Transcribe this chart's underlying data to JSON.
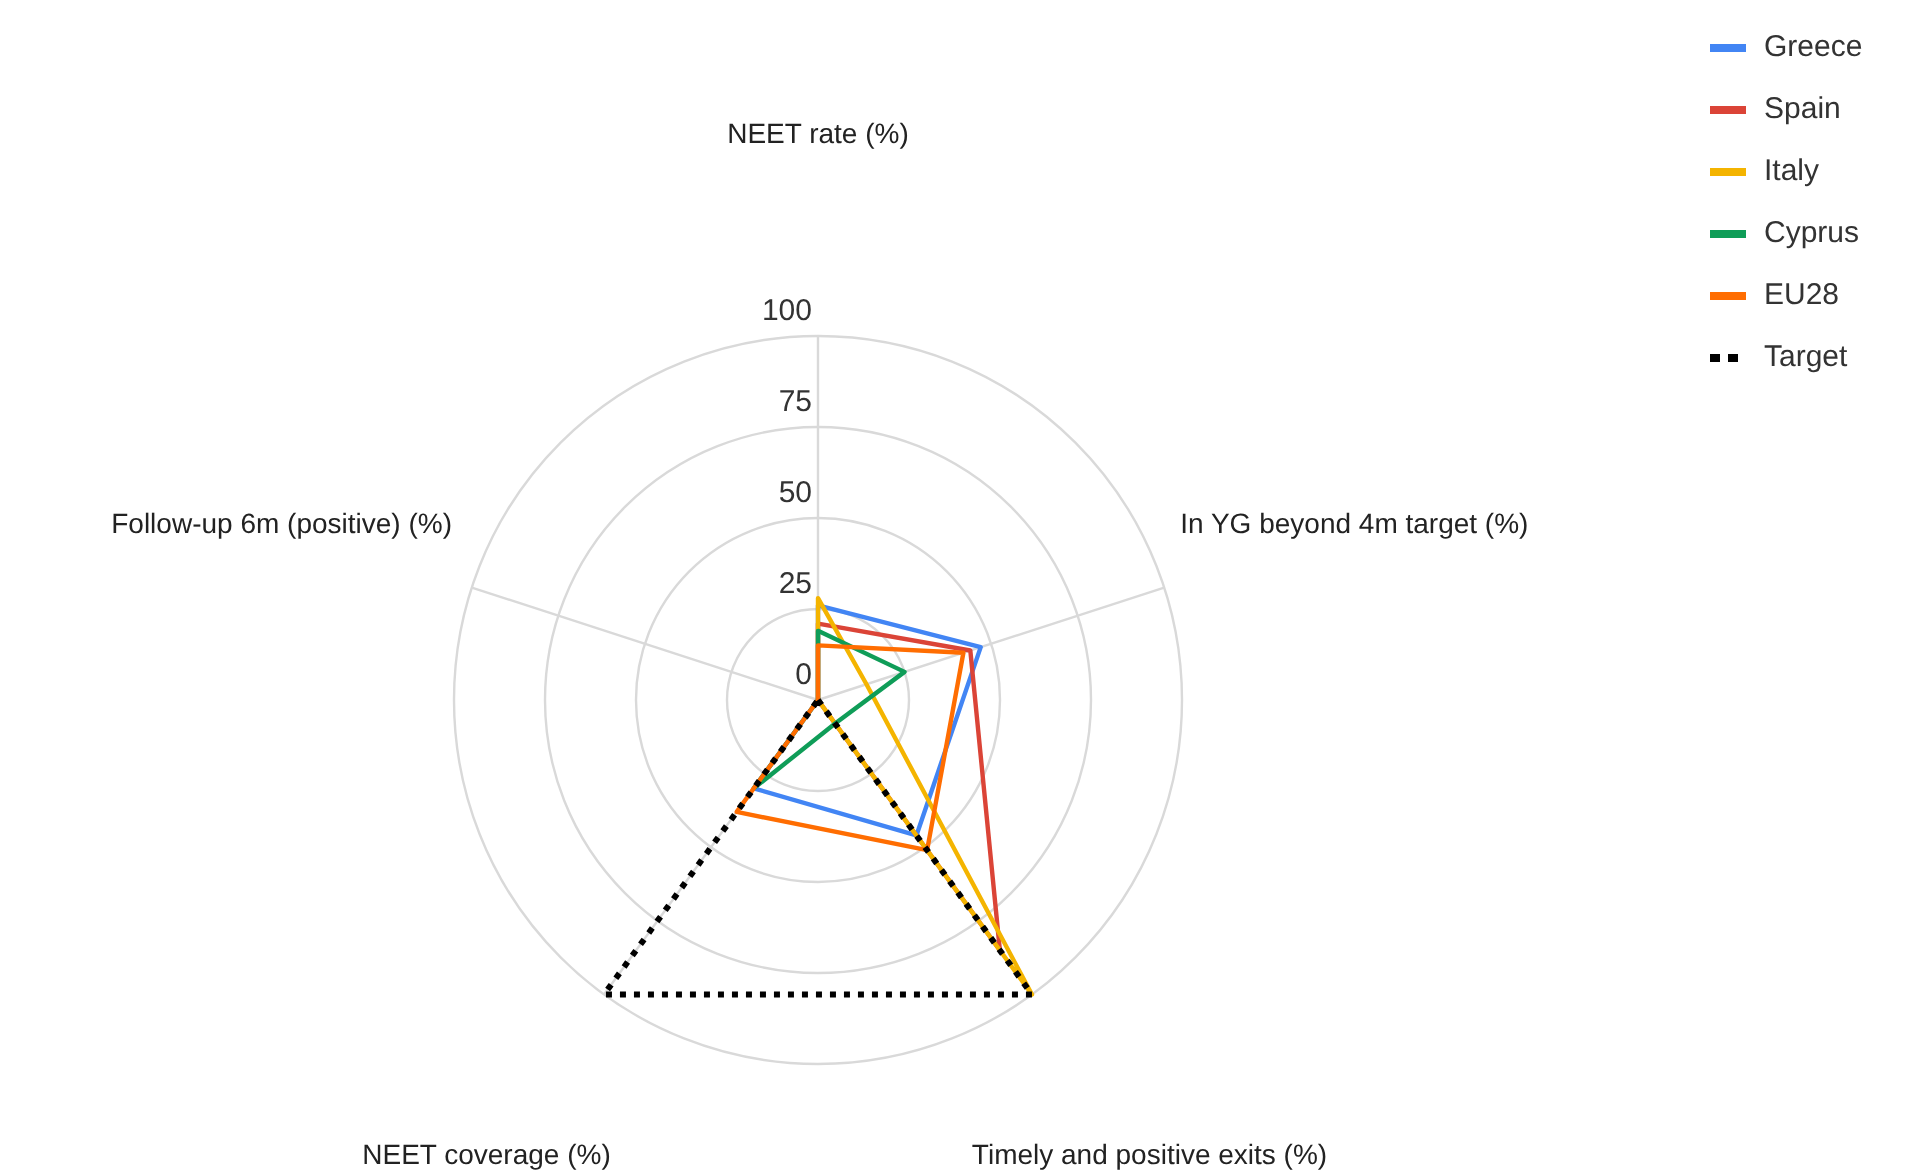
{
  "chart_data": {
    "type": "radar",
    "categories": [
      "NEET rate (%)",
      "In YG beyond 4m target (%)",
      "Timely and positive exits (%)",
      "NEET coverage (%)",
      "Follow-up 6m (positive) (%)"
    ],
    "ylim": [
      0,
      100
    ],
    "yticks": [
      0,
      25,
      50,
      75,
      100
    ],
    "grid": true,
    "legend": "top right",
    "line_style": "solid",
    "series": [
      {
        "name": "Greece",
        "color": "#4285f4",
        "values": [
          26,
          47,
          46,
          30,
          0
        ]
      },
      {
        "name": "Spain",
        "color": "#db4437",
        "values": [
          21,
          44,
          85,
          0,
          0
        ]
      },
      {
        "name": "Italy",
        "color": "#f4b400",
        "values": [
          28,
          14,
          100,
          0,
          0
        ]
      },
      {
        "name": "Cyprus",
        "color": "#0f9d58",
        "values": [
          19,
          25,
          8,
          30,
          0
        ]
      },
      {
        "name": "EU28",
        "color": "#ff6d01",
        "values": [
          15,
          42,
          51,
          38,
          0
        ]
      },
      {
        "name": "Target",
        "color": "#000000",
        "values": [
          0,
          0,
          100,
          100,
          0
        ],
        "line_style": "dotted"
      }
    ]
  }
}
